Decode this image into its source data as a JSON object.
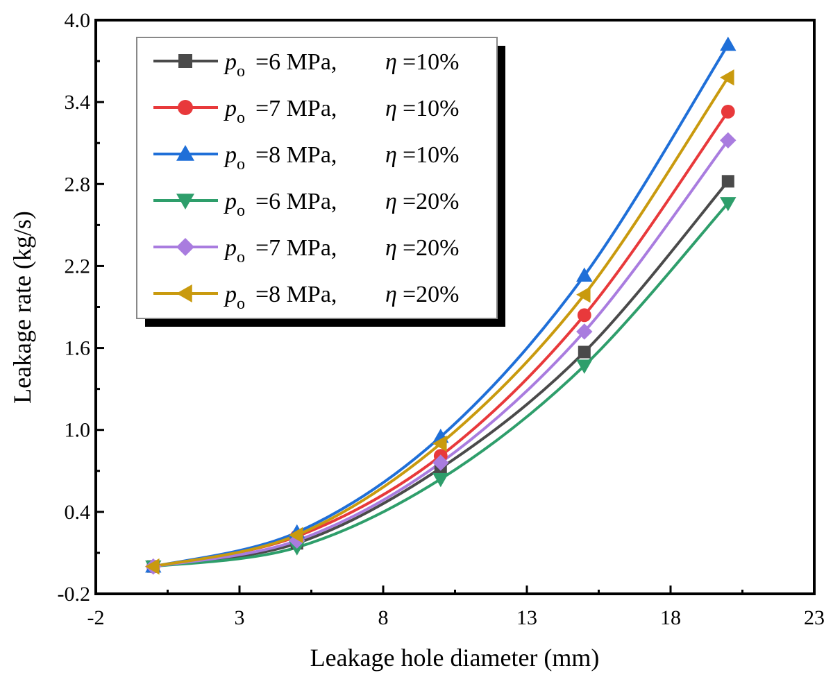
{
  "chart_data": {
    "type": "line",
    "xlabel": "Leakage hole diameter (mm)",
    "ylabel": "Leakage rate (kg/s)",
    "xlim": [
      -2,
      23
    ],
    "ylim": [
      -0.2,
      4.0
    ],
    "xticks": [
      -2,
      3,
      8,
      13,
      18,
      23
    ],
    "xtick_labels": [
      "-2",
      "3",
      "8",
      "13",
      "18",
      "23"
    ],
    "yticks": [
      -0.2,
      0.4,
      1.0,
      1.6,
      2.2,
      2.8,
      3.4,
      4.0
    ],
    "ytick_labels": [
      "-0.2",
      "0.4",
      "1.0",
      "1.6",
      "2.2",
      "2.8",
      "3.4",
      "4.0"
    ],
    "legend_position": "top-left",
    "x": [
      0,
      5,
      10,
      15,
      20
    ],
    "series": [
      {
        "name": "po=6 MPa, η=10%",
        "p_symbol": "p",
        "p_sub": "o",
        "p_value": "=6 MPa,",
        "eta_symbol": "η",
        "eta_value": "=10%",
        "marker": "square",
        "color": "#4a4a4a",
        "values": [
          0.0,
          0.17,
          0.72,
          1.57,
          2.82
        ]
      },
      {
        "name": "po=7 MPa, η=10%",
        "p_symbol": "p",
        "p_sub": "o",
        "p_value": "=7 MPa,",
        "eta_symbol": "η",
        "eta_value": "=10%",
        "marker": "circle",
        "color": "#e8393b",
        "values": [
          0.0,
          0.22,
          0.81,
          1.84,
          3.33
        ]
      },
      {
        "name": "po=8 MPa, η=10%",
        "p_symbol": "p",
        "p_sub": "o",
        "p_value": "=8 MPa,",
        "eta_symbol": "η",
        "eta_value": "=10%",
        "marker": "triangle-up",
        "color": "#1f6fd8",
        "values": [
          0.0,
          0.25,
          0.95,
          2.13,
          3.82
        ]
      },
      {
        "name": "po=6 MPa, η=20%",
        "p_symbol": "p",
        "p_sub": "o",
        "p_value": "=6 MPa,",
        "eta_symbol": "η",
        "eta_value": "=20%",
        "marker": "triangle-down",
        "color": "#2e9e6b",
        "values": [
          0.0,
          0.14,
          0.64,
          1.47,
          2.66
        ]
      },
      {
        "name": "po=7 MPa, η=20%",
        "p_symbol": "p",
        "p_sub": "o",
        "p_value": "=7 MPa,",
        "eta_symbol": "η",
        "eta_value": "=20%",
        "marker": "diamond",
        "color": "#a97cdf",
        "values": [
          0.0,
          0.19,
          0.76,
          1.72,
          3.12
        ]
      },
      {
        "name": "po=8 MPa, η=20%",
        "p_symbol": "p",
        "p_sub": "o",
        "p_value": "=8 MPa,",
        "eta_symbol": "η",
        "eta_value": "=20%",
        "marker": "triangle-left",
        "color": "#c99a0e",
        "values": [
          0.0,
          0.23,
          0.9,
          1.99,
          3.58
        ]
      }
    ]
  }
}
